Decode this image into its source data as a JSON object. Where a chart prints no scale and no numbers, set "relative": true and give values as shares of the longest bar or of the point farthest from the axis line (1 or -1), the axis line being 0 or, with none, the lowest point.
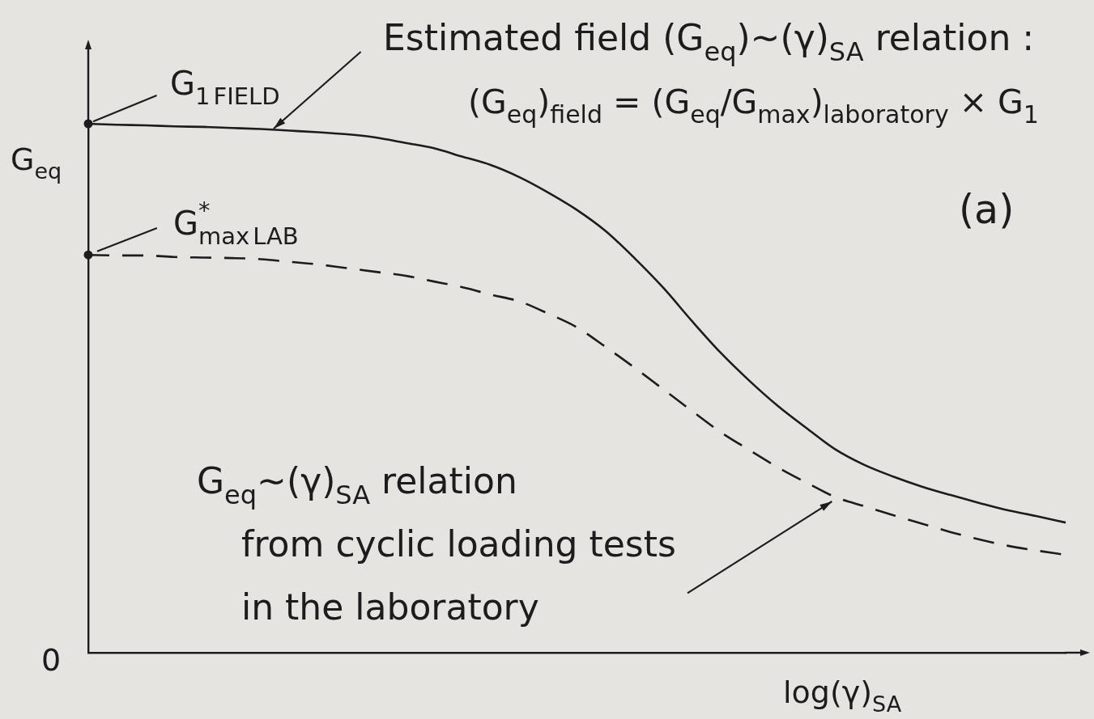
{
  "chart_data": {
    "type": "line",
    "relative": true,
    "tick_labels": false,
    "xlabel": "log(γ)$_{SA}$",
    "ylabel": "G$_{eq}$",
    "categories": [
      null,
      null,
      null,
      null,
      null,
      null,
      null,
      null,
      null,
      null,
      null,
      null,
      null,
      null,
      null,
      null,
      null,
      null,
      null,
      null,
      null,
      null,
      null,
      null,
      null,
      null,
      null,
      null,
      null,
      null,
      null,
      null,
      null,
      null,
      null
    ],
    "series": [
      {
        "name": "Estimated field (G$_{eq}$)~(γ)$_{SA}$ relation :",
        "color": "#1c1c1c",
        "line_style": "solid",
        "values": [
          1.0,
          0.998,
          0.997,
          0.995,
          0.994,
          0.992,
          0.99,
          0.987,
          0.984,
          0.98,
          0.974,
          0.964,
          0.954,
          0.938,
          0.922,
          0.899,
          0.87,
          0.837,
          0.797,
          0.746,
          0.69,
          0.627,
          0.567,
          0.514,
          0.466,
          0.424,
          0.384,
          0.355,
          0.333,
          0.314,
          0.298,
          0.283,
          0.269,
          0.258,
          0.246
        ]
      },
      {
        "name": "G$_{eq}$~(γ)$_{SA}$ relation from cyclic loading tests in the laboratory",
        "color": "#1c1c1c",
        "line_style": "dashed",
        "values": [
          0.752,
          0.751,
          0.751,
          0.748,
          0.747,
          0.746,
          0.744,
          0.739,
          0.734,
          0.727,
          0.72,
          0.713,
          0.702,
          0.691,
          0.677,
          0.664,
          0.641,
          0.615,
          0.578,
          0.539,
          0.498,
          0.457,
          0.417,
          0.383,
          0.35,
          0.321,
          0.294,
          0.277,
          0.26,
          0.244,
          0.228,
          0.214,
          0.202,
          0.193,
          0.185
        ]
      }
    ],
    "annotations": [
      {
        "text": "G$_{1}$$_{FIELD}$",
        "y": 1.0
      },
      {
        "text": "G$^{*}$$_{max}$$_{LAB}$",
        "y": 0.752
      },
      "(G$_{eq}$)$_{field}$ = (G$_{eq}$/G$_{max}$)$_{laboratory}$ × G$_{1}$",
      "(a)",
      "0"
    ]
  }
}
